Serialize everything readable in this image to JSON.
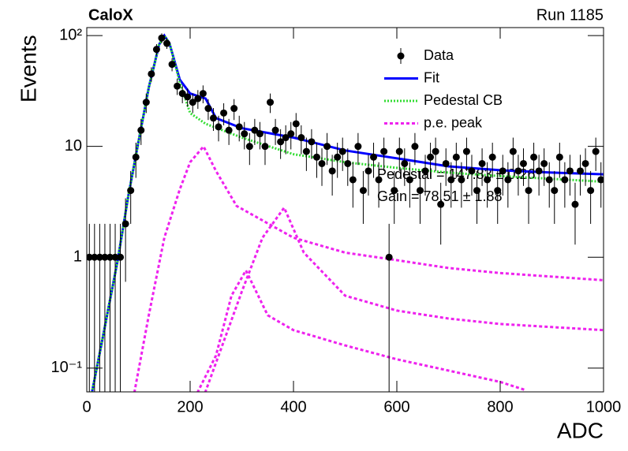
{
  "chart_data": {
    "type": "line",
    "title": "CaloX",
    "subtitle": "Run 1185",
    "x_label": "ADC",
    "y_label": "Events",
    "log_y": true,
    "legend": "upper right",
    "xlim": [
      0,
      1000
    ],
    "xticks": [
      0,
      200,
      400,
      600,
      800,
      1000
    ],
    "ylim": [
      0.061,
      118
    ],
    "yticks": [
      {
        "value": 0.1,
        "label": "10⁻¹"
      },
      1,
      10,
      {
        "value": 100,
        "label": "10²"
      }
    ],
    "annotations": [
      "Pedestal = 147.83 ± 0.26",
      "Gain = 78.51 ± 1.88"
    ],
    "series": [
      {
        "name": "Data",
        "style": "points",
        "color": "#000000",
        "x": [
          5,
          15,
          25,
          35,
          45,
          55,
          65,
          75,
          85,
          95,
          105,
          115,
          125,
          135,
          145,
          155,
          165,
          175,
          185,
          195,
          205,
          215,
          225,
          235,
          245,
          255,
          265,
          275,
          285,
          295,
          305,
          315,
          325,
          335,
          345,
          355,
          365,
          375,
          385,
          395,
          405,
          415,
          425,
          435,
          445,
          455,
          465,
          475,
          485,
          495,
          505,
          515,
          525,
          535,
          545,
          555,
          565,
          575,
          585,
          595,
          605,
          615,
          625,
          635,
          645,
          655,
          665,
          675,
          685,
          695,
          705,
          715,
          725,
          735,
          745,
          755,
          765,
          775,
          785,
          795,
          805,
          815,
          825,
          835,
          845,
          855,
          865,
          875,
          885,
          895,
          905,
          915,
          925,
          935,
          945,
          955,
          965,
          975,
          985,
          995
        ],
        "values": [
          1,
          1,
          1,
          1,
          1,
          1,
          1,
          2,
          4,
          8,
          14,
          25,
          45,
          75,
          95,
          85,
          55,
          35,
          30,
          28,
          25,
          27,
          30,
          22,
          18,
          15,
          20,
          14,
          22,
          15,
          13,
          10,
          14,
          13,
          10,
          25,
          14,
          11,
          12,
          13,
          16,
          12,
          9,
          11,
          8,
          7,
          10,
          6,
          8,
          9,
          7,
          5,
          10,
          4,
          6,
          8,
          5,
          9,
          1,
          4,
          9,
          7,
          5,
          10,
          4,
          6,
          8,
          9,
          3,
          7,
          5,
          8,
          5,
          9,
          6,
          4,
          7,
          5,
          8,
          4,
          6,
          5,
          9,
          6,
          7,
          4,
          8,
          6,
          7,
          5,
          4,
          8,
          5,
          6,
          3,
          6,
          7,
          4,
          9,
          5
        ],
        "errors": [
          1,
          1,
          1,
          1,
          1,
          1,
          1,
          1.4,
          2,
          2.8,
          3.7,
          5,
          6.7,
          8.7,
          9.7,
          9.2,
          7.4,
          5.9,
          5.5,
          5.3,
          5,
          5.2,
          5.5,
          4.7,
          4.2,
          3.9,
          4.5,
          3.7,
          4.7,
          3.9,
          3.6,
          3.2,
          3.7,
          3.6,
          3.2,
          5,
          3.7,
          3.3,
          3.5,
          3.6,
          4,
          3.5,
          3,
          3.3,
          2.8,
          2.6,
          3.2,
          2.4,
          2.8,
          3,
          2.6,
          2.2,
          3.2,
          2,
          2.4,
          2.8,
          2.2,
          3,
          1,
          2,
          3,
          2.6,
          2.2,
          3.2,
          2,
          2.4,
          2.8,
          3,
          1.7,
          2.6,
          2.2,
          2.8,
          2.2,
          3,
          2.4,
          2,
          2.6,
          2.2,
          2.8,
          2,
          2.4,
          2.2,
          3,
          2.4,
          2.6,
          2,
          2.8,
          2.4,
          2.6,
          2.2,
          2,
          2.8,
          2.2,
          2.4,
          1.7,
          2.4,
          2.6,
          2,
          3,
          2.2
        ]
      },
      {
        "name": "Fit",
        "style": "solid",
        "color": "#0000ff",
        "x": [
          10,
          30,
          60,
          80,
          100,
          120,
          140,
          150,
          160,
          180,
          200,
          230,
          250,
          300,
          400,
          500,
          600,
          700,
          800,
          900,
          1000
        ],
        "values": [
          0.06,
          0.18,
          0.95,
          3.5,
          11,
          34,
          83,
          100,
          85,
          40,
          30,
          27,
          18,
          14.6,
          12,
          9.2,
          7.8,
          6.6,
          6.1,
          5.8,
          5.6
        ]
      },
      {
        "name": "Pedestal CB",
        "style": "dotted",
        "color": "#33dd33",
        "x": [
          10,
          30,
          60,
          80,
          100,
          120,
          140,
          150,
          160,
          180,
          200,
          230,
          300,
          400,
          500,
          600,
          700,
          800,
          900,
          1000
        ],
        "values": [
          0.06,
          0.18,
          0.95,
          3.5,
          11,
          34,
          83,
          100,
          85,
          38,
          20,
          16,
          12,
          8.5,
          7.2,
          6.4,
          5.8,
          5.4,
          5.1,
          4.8
        ]
      },
      {
        "name": "p.e. peak",
        "style": "dashed",
        "color": "#ee22ee",
        "x": [
          92,
          120,
          150,
          180,
          200,
          226,
          250,
          290,
          400,
          500,
          600,
          700,
          800,
          1000
        ],
        "values": [
          0.06,
          0.3,
          1.5,
          4.1,
          7.2,
          10,
          6,
          2.9,
          1.5,
          1.1,
          0.94,
          0.8,
          0.72,
          0.62
        ]
      },
      {
        "style": "dashed",
        "color": "#ee22ee",
        "x": [
          214,
          250,
          280,
          308,
          350,
          400,
          500,
          600,
          700,
          800,
          850
        ],
        "values": [
          0.06,
          0.13,
          0.45,
          0.76,
          0.3,
          0.22,
          0.16,
          0.12,
          0.095,
          0.075,
          0.063
        ]
      },
      {
        "style": "dashed",
        "color": "#ee22ee",
        "x": [
          229,
          260,
          300,
          340,
          382,
          420,
          500,
          600,
          700,
          800,
          1000
        ],
        "values": [
          0.06,
          0.15,
          0.49,
          1.5,
          2.8,
          1.1,
          0.45,
          0.33,
          0.28,
          0.25,
          0.22
        ]
      }
    ]
  }
}
